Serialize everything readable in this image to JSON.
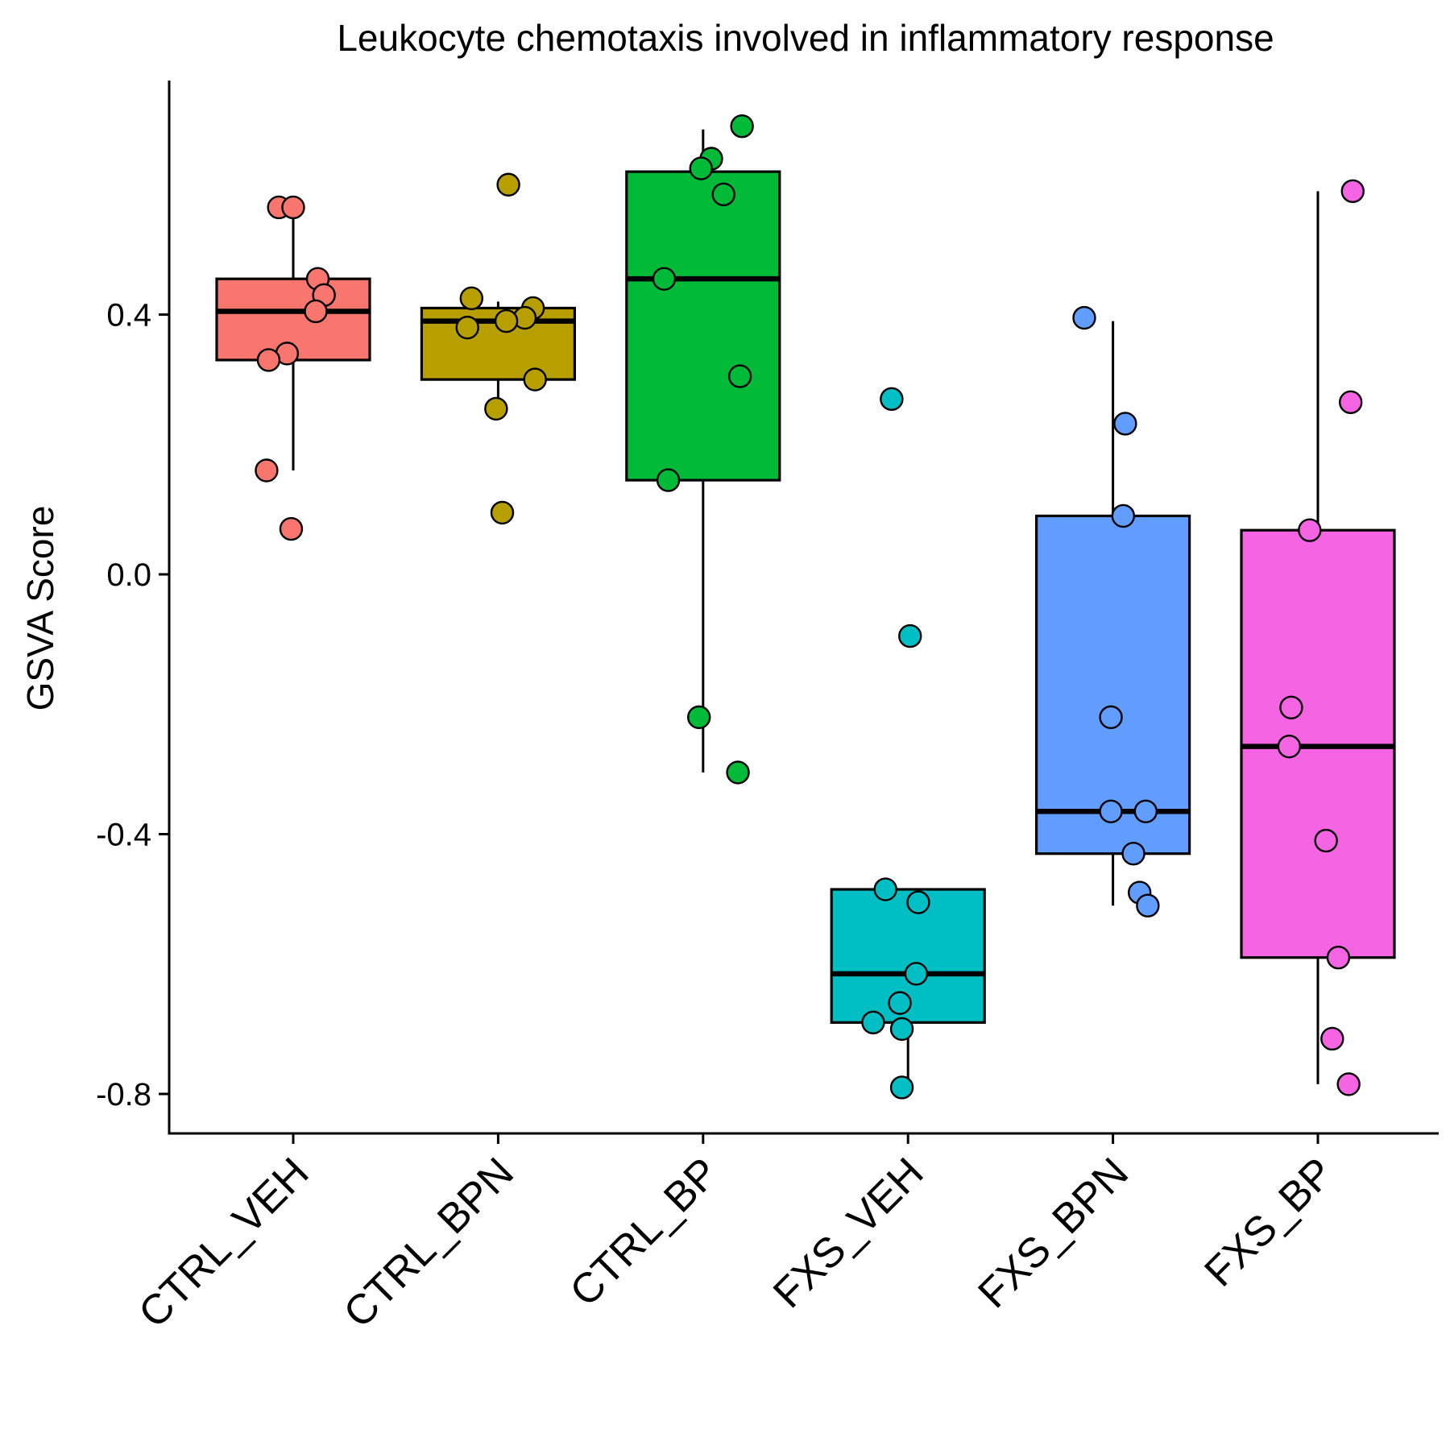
{
  "chart_data": {
    "type": "box",
    "title": "Leukocyte chemotaxis involved in inflammatory response",
    "ylabel": "GSVA Score",
    "xlabel": "",
    "ylim": [
      -0.86,
      0.76
    ],
    "yticks": [
      0.4,
      0.0,
      -0.4,
      -0.8
    ],
    "ytick_labels": [
      "0.4",
      "0.0",
      "-0.4",
      "-0.8"
    ],
    "grid": false,
    "legend": "none",
    "categories": [
      "CTRL_VEH",
      "CTRL_BPN",
      "CTRL_BP",
      "FXS_VEH",
      "FXS_BPN",
      "FXS_BP"
    ],
    "series": [
      {
        "category": "CTRL_VEH",
        "color": "#F8766D",
        "box": {
          "q1": 0.33,
          "median": 0.405,
          "q3": 0.455,
          "whisker_low": 0.16,
          "whisker_high": 0.565
        },
        "points": [
          {
            "jitter": -0.07,
            "y": 0.565
          },
          {
            "jitter": 0.0,
            "y": 0.565
          },
          {
            "jitter": 0.12,
            "y": 0.455
          },
          {
            "jitter": 0.15,
            "y": 0.43
          },
          {
            "jitter": 0.11,
            "y": 0.405
          },
          {
            "jitter": -0.03,
            "y": 0.34
          },
          {
            "jitter": -0.12,
            "y": 0.33
          },
          {
            "jitter": -0.13,
            "y": 0.16
          },
          {
            "jitter": -0.01,
            "y": 0.07
          }
        ]
      },
      {
        "category": "CTRL_BPN",
        "color": "#B79F00",
        "box": {
          "q1": 0.3,
          "median": 0.39,
          "q3": 0.41,
          "whisker_low": 0.26,
          "whisker_high": 0.42
        },
        "points": [
          {
            "jitter": 0.05,
            "y": 0.6
          },
          {
            "jitter": -0.13,
            "y": 0.425
          },
          {
            "jitter": 0.17,
            "y": 0.41
          },
          {
            "jitter": 0.13,
            "y": 0.395
          },
          {
            "jitter": 0.04,
            "y": 0.39
          },
          {
            "jitter": -0.15,
            "y": 0.38
          },
          {
            "jitter": 0.18,
            "y": 0.3
          },
          {
            "jitter": -0.01,
            "y": 0.255
          },
          {
            "jitter": 0.02,
            "y": 0.095
          }
        ]
      },
      {
        "category": "CTRL_BP",
        "color": "#00BA38",
        "box": {
          "q1": 0.145,
          "median": 0.455,
          "q3": 0.62,
          "whisker_low": -0.305,
          "whisker_high": 0.685
        },
        "points": [
          {
            "jitter": 0.19,
            "y": 0.69
          },
          {
            "jitter": 0.04,
            "y": 0.64
          },
          {
            "jitter": -0.01,
            "y": 0.625
          },
          {
            "jitter": 0.1,
            "y": 0.585
          },
          {
            "jitter": -0.19,
            "y": 0.455
          },
          {
            "jitter": 0.18,
            "y": 0.305
          },
          {
            "jitter": -0.17,
            "y": 0.145
          },
          {
            "jitter": -0.02,
            "y": -0.22
          },
          {
            "jitter": 0.17,
            "y": -0.305
          }
        ]
      },
      {
        "category": "FXS_VEH",
        "color": "#00BFC4",
        "box": {
          "q1": -0.69,
          "median": -0.615,
          "q3": -0.485,
          "whisker_low": -0.79,
          "whisker_high": -0.485
        },
        "points": [
          {
            "jitter": -0.08,
            "y": 0.27
          },
          {
            "jitter": 0.01,
            "y": -0.095
          },
          {
            "jitter": -0.11,
            "y": -0.485
          },
          {
            "jitter": 0.05,
            "y": -0.505
          },
          {
            "jitter": 0.04,
            "y": -0.615
          },
          {
            "jitter": -0.04,
            "y": -0.66
          },
          {
            "jitter": -0.17,
            "y": -0.69
          },
          {
            "jitter": -0.03,
            "y": -0.7
          },
          {
            "jitter": -0.03,
            "y": -0.79
          }
        ]
      },
      {
        "category": "FXS_BPN",
        "color": "#619CFF",
        "box": {
          "q1": -0.43,
          "median": -0.365,
          "q3": 0.09,
          "whisker_low": -0.51,
          "whisker_high": 0.39
        },
        "points": [
          {
            "jitter": -0.14,
            "y": 0.395
          },
          {
            "jitter": 0.06,
            "y": 0.232
          },
          {
            "jitter": 0.05,
            "y": 0.09
          },
          {
            "jitter": -0.01,
            "y": -0.22
          },
          {
            "jitter": -0.01,
            "y": -0.365
          },
          {
            "jitter": 0.16,
            "y": -0.365
          },
          {
            "jitter": 0.1,
            "y": -0.43
          },
          {
            "jitter": 0.13,
            "y": -0.49
          },
          {
            "jitter": 0.17,
            "y": -0.51
          }
        ]
      },
      {
        "category": "FXS_BP",
        "color": "#F564E3",
        "box": {
          "q1": -0.59,
          "median": -0.265,
          "q3": 0.068,
          "whisker_low": -0.785,
          "whisker_high": 0.59
        },
        "points": [
          {
            "jitter": 0.17,
            "y": 0.59
          },
          {
            "jitter": 0.16,
            "y": 0.265
          },
          {
            "jitter": -0.04,
            "y": 0.068
          },
          {
            "jitter": -0.13,
            "y": -0.205
          },
          {
            "jitter": -0.14,
            "y": -0.265
          },
          {
            "jitter": 0.04,
            "y": -0.41
          },
          {
            "jitter": 0.1,
            "y": -0.59
          },
          {
            "jitter": 0.07,
            "y": -0.715
          },
          {
            "jitter": 0.15,
            "y": -0.785
          }
        ]
      }
    ]
  }
}
